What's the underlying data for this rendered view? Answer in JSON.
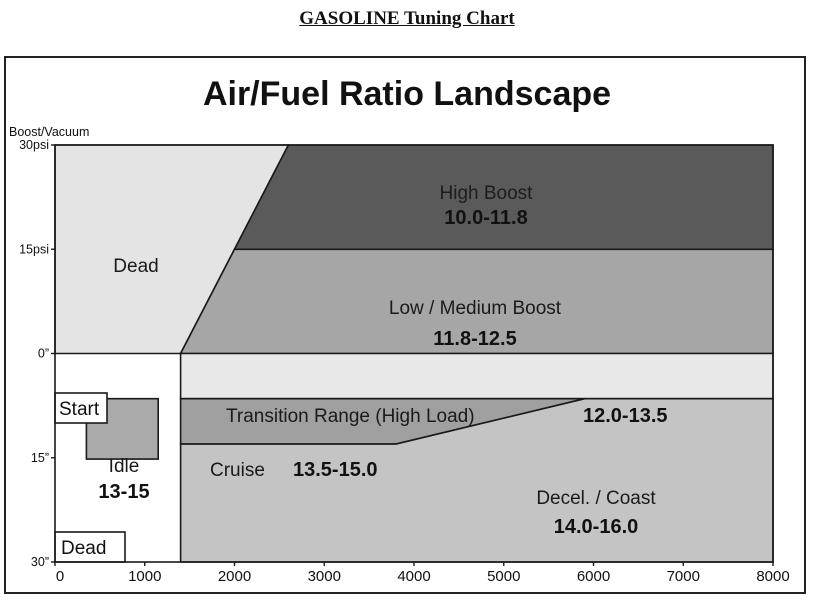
{
  "heading": "GASOLINE Tuning Chart",
  "chart_data": {
    "type": "area",
    "title": "Air/Fuel Ratio Landscape",
    "ylabel": "Boost/Vacuum",
    "xlabel": "",
    "x_ticks": [
      {
        "value": 0,
        "label": "0"
      },
      {
        "value": 1000,
        "label": "1000"
      },
      {
        "value": 2000,
        "label": "2000"
      },
      {
        "value": 3000,
        "label": "3000"
      },
      {
        "value": 4000,
        "label": "4000"
      },
      {
        "value": 5000,
        "label": "5000"
      },
      {
        "value": 6000,
        "label": "6000"
      },
      {
        "value": 7000,
        "label": "7000"
      },
      {
        "value": 8000,
        "label": "8000"
      }
    ],
    "y_ticks": [
      {
        "value": 30,
        "label": "30psi"
      },
      {
        "value": 15,
        "label": "15psi"
      },
      {
        "value": 0,
        "label": "0”"
      },
      {
        "value": -15,
        "label": "15”"
      },
      {
        "value": -30,
        "label": "30”"
      }
    ],
    "xlim": [
      0,
      8000
    ],
    "ylim": [
      -30,
      30
    ],
    "regions": [
      {
        "key": "dead-upper",
        "name": "Dead",
        "range": "",
        "color": "#e4e4e4",
        "polygon": [
          [
            0,
            30
          ],
          [
            2600,
            30
          ],
          [
            1400,
            0
          ],
          [
            0,
            0
          ]
        ]
      },
      {
        "key": "high-boost",
        "name": "High Boost",
        "range": "10.0-11.8",
        "color": "#5a5a5a",
        "polygon": [
          [
            2600,
            30
          ],
          [
            8000,
            30
          ],
          [
            8000,
            15
          ],
          [
            2000,
            15
          ]
        ]
      },
      {
        "key": "low-medium-boost",
        "name": "Low / Medium Boost",
        "range": "11.8-12.5",
        "color": "#a6a6a6",
        "polygon": [
          [
            2000,
            15
          ],
          [
            8000,
            15
          ],
          [
            8000,
            0
          ],
          [
            1400,
            0
          ]
        ]
      },
      {
        "key": "transition-range",
        "name": "Transition Range (High Load)",
        "range": "12.0-13.5",
        "color": "#e8e8e8",
        "polygon": [
          [
            1400,
            0
          ],
          [
            8000,
            0
          ],
          [
            8000,
            -6.5
          ],
          [
            1400,
            -6.5
          ]
        ]
      },
      {
        "key": "decel-coast",
        "name": "Decel. / Coast",
        "range": "14.0-16.0",
        "color": "#c4c4c4",
        "polygon": [
          [
            5900,
            -6.5
          ],
          [
            8000,
            -6.5
          ],
          [
            8000,
            -30
          ],
          [
            1400,
            -30
          ],
          [
            1400,
            -13
          ],
          [
            3800,
            -13
          ]
        ]
      },
      {
        "key": "cruise",
        "name": "Cruise",
        "range": "13.5-15.0",
        "color": "#a0a0a0",
        "polygon": [
          [
            1400,
            -6.5
          ],
          [
            5900,
            -6.5
          ],
          [
            3800,
            -13
          ],
          [
            1400,
            -13
          ]
        ]
      },
      {
        "key": "idle",
        "name": "Idle",
        "range": "13-15",
        "color": "#aaaaaa",
        "polygon": [
          [
            350,
            -6.5
          ],
          [
            1150,
            -6.5
          ],
          [
            1150,
            -15.2
          ],
          [
            350,
            -15.2
          ]
        ]
      }
    ],
    "boxed_labels": [
      {
        "key": "start",
        "name": "Start"
      },
      {
        "key": "dead-lower",
        "name": "Dead"
      }
    ]
  }
}
